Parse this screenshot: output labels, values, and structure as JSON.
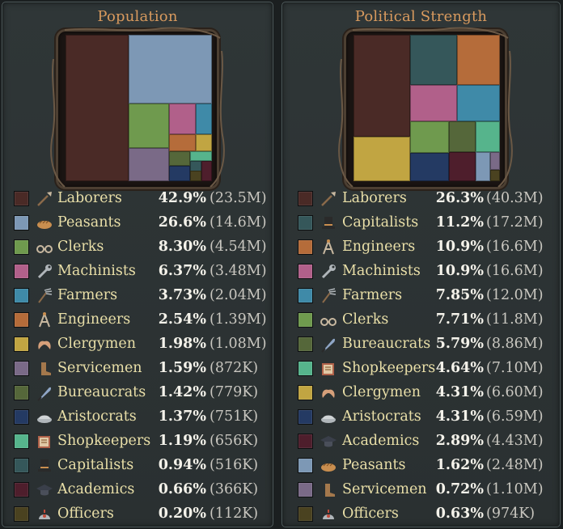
{
  "population": {
    "title": "Population",
    "rows": [
      {
        "name": "Laborers",
        "percent": "42.9%",
        "amount": "(23.5M)",
        "color": "#4a2a26",
        "icon": "shovel-icon"
      },
      {
        "name": "Peasants",
        "percent": "26.6%",
        "amount": "(14.6M)",
        "color": "#7d98b5",
        "icon": "bread-icon"
      },
      {
        "name": "Clerks",
        "percent": "8.30%",
        "amount": "(4.54M)",
        "color": "#6f9a4e",
        "icon": "glasses-icon"
      },
      {
        "name": "Machinists",
        "percent": "6.37%",
        "amount": "(3.48M)",
        "color": "#b1608a",
        "icon": "wrench-icon"
      },
      {
        "name": "Farmers",
        "percent": "3.73%",
        "amount": "(2.04M)",
        "color": "#3f8aa8",
        "icon": "pitchfork-icon"
      },
      {
        "name": "Engineers",
        "percent": "2.54%",
        "amount": "(1.39M)",
        "color": "#b56c3a",
        "icon": "compass-icon"
      },
      {
        "name": "Clergymen",
        "percent": "1.98%",
        "amount": "(1.08M)",
        "color": "#c1a542",
        "icon": "wings-icon"
      },
      {
        "name": "Servicemen",
        "percent": "1.59%",
        "amount": "(872K)",
        "color": "#7a6a87",
        "icon": "boot-icon"
      },
      {
        "name": "Bureaucrats",
        "percent": "1.42%",
        "amount": "(779K)",
        "color": "#55673a",
        "icon": "quill-icon"
      },
      {
        "name": "Aristocrats",
        "percent": "1.37%",
        "amount": "(751K)",
        "color": "#243a63",
        "icon": "platter-icon"
      },
      {
        "name": "Shopkeepers",
        "percent": "1.19%",
        "amount": "(656K)",
        "color": "#56b48c",
        "icon": "ledger-icon"
      },
      {
        "name": "Capitalists",
        "percent": "0.94%",
        "amount": "(516K)",
        "color": "#35575a",
        "icon": "tophat-icon"
      },
      {
        "name": "Academics",
        "percent": "0.66%",
        "amount": "(366K)",
        "color": "#4e1e2c",
        "icon": "mortarboard-icon"
      },
      {
        "name": "Officers",
        "percent": "0.20%",
        "amount": "(112K)",
        "color": "#4a4220",
        "icon": "helmet-icon"
      }
    ]
  },
  "political": {
    "title": "Political Strength",
    "rows": [
      {
        "name": "Laborers",
        "percent": "26.3%",
        "amount": "(40.3M)",
        "color": "#4a2a26",
        "icon": "shovel-icon"
      },
      {
        "name": "Capitalists",
        "percent": "11.2%",
        "amount": "(17.2M)",
        "color": "#35575a",
        "icon": "tophat-icon"
      },
      {
        "name": "Engineers",
        "percent": "10.9%",
        "amount": "(16.6M)",
        "color": "#b56c3a",
        "icon": "compass-icon"
      },
      {
        "name": "Machinists",
        "percent": "10.9%",
        "amount": "(16.6M)",
        "color": "#b1608a",
        "icon": "wrench-icon"
      },
      {
        "name": "Farmers",
        "percent": "7.85%",
        "amount": "(12.0M)",
        "color": "#3f8aa8",
        "icon": "pitchfork-icon"
      },
      {
        "name": "Clerks",
        "percent": "7.71%",
        "amount": "(11.8M)",
        "color": "#6f9a4e",
        "icon": "glasses-icon"
      },
      {
        "name": "Bureaucrats",
        "percent": "5.79%",
        "amount": "(8.86M)",
        "color": "#55673a",
        "icon": "quill-icon"
      },
      {
        "name": "Shopkeepers",
        "percent": "4.64%",
        "amount": "(7.10M)",
        "color": "#56b48c",
        "icon": "ledger-icon"
      },
      {
        "name": "Clergymen",
        "percent": "4.31%",
        "amount": "(6.60M)",
        "color": "#c1a542",
        "icon": "wings-icon"
      },
      {
        "name": "Aristocrats",
        "percent": "4.31%",
        "amount": "(6.59M)",
        "color": "#243a63",
        "icon": "platter-icon"
      },
      {
        "name": "Academics",
        "percent": "2.89%",
        "amount": "(4.43M)",
        "color": "#4e1e2c",
        "icon": "mortarboard-icon"
      },
      {
        "name": "Peasants",
        "percent": "1.62%",
        "amount": "(2.48M)",
        "color": "#7d98b5",
        "icon": "bread-icon"
      },
      {
        "name": "Servicemen",
        "percent": "0.72%",
        "amount": "(1.10M)",
        "color": "#7a6a87",
        "icon": "boot-icon"
      },
      {
        "name": "Officers",
        "percent": "0.63%",
        "amount": "(974K)",
        "color": "#4a4220",
        "icon": "helmet-icon"
      }
    ]
  }
}
